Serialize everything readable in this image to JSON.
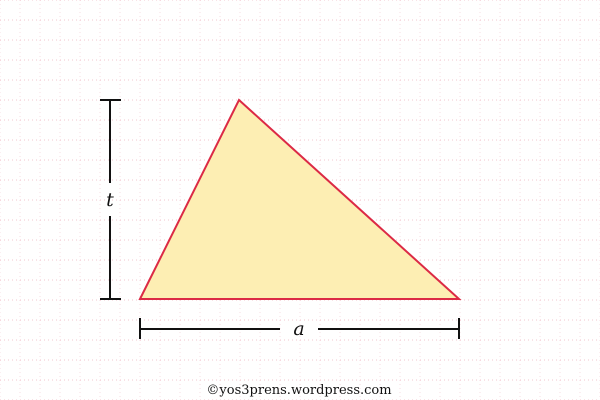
{
  "diagram": {
    "height_label": "t",
    "base_label": "a",
    "credit": "©yos3prens.wordpress.com",
    "colors": {
      "triangle_fill": "#fdeeb3",
      "triangle_stroke": "#dc2a45",
      "dimension_lines": "#111111",
      "grid_dots": "#f2c4cc",
      "background": "#ffffff"
    }
  }
}
